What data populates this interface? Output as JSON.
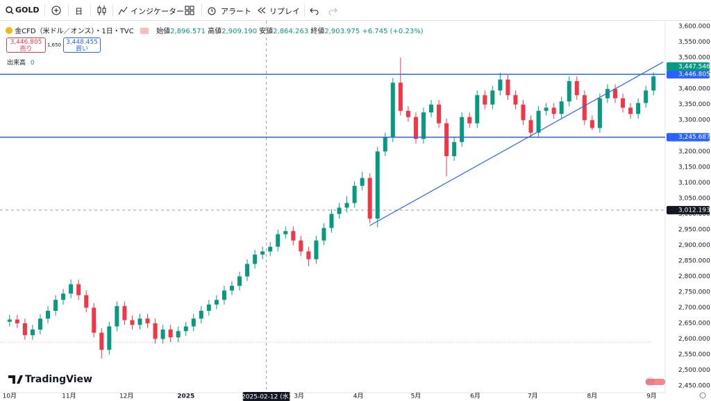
{
  "toolbar": {
    "symbol": "GOLD",
    "interval": "日",
    "indicators": "インジケーター",
    "alert": "アラート",
    "replay": "リプレイ"
  },
  "legend": {
    "title": "金CFD（米ドル／オンス）・1日・TVC",
    "open_label": "始値",
    "open": "2,896.571",
    "high_label": "高値",
    "high": "2,909.190",
    "low_label": "安値",
    "low": "2,864.263",
    "close_label": "終値",
    "close": "2,903.975",
    "change": "+6.745 (+0.23%)",
    "sell_price": "3,446.805",
    "sell_label": "売り",
    "spread": "1,650",
    "buy_price": "3,448.455",
    "buy_label": "買い",
    "volume_label": "出来高",
    "volume": "0"
  },
  "logo": "TradingView",
  "chart_data": {
    "type": "candlestick",
    "up_color": "#089981",
    "down_color": "#f23645",
    "grid": false,
    "x": [
      0,
      4,
      8,
      12,
      16,
      20,
      24,
      28,
      32,
      36,
      40,
      44,
      48,
      52,
      56,
      60,
      64,
      68,
      72,
      76,
      80,
      84,
      88,
      92,
      96,
      100,
      104,
      108,
      112,
      116,
      120,
      124,
      128,
      132,
      136,
      140,
      144,
      148,
      152,
      156,
      160,
      164,
      168,
      172,
      176,
      180,
      184,
      188,
      192,
      196,
      200,
      204,
      208,
      212,
      216,
      220,
      224,
      228,
      232,
      236,
      240,
      244,
      248,
      252,
      256,
      260,
      264,
      268,
      272,
      276,
      280,
      284,
      288,
      292,
      296,
      300,
      304,
      308,
      312,
      316,
      320,
      324,
      328,
      332,
      336
    ],
    "open": [
      2655,
      2662,
      2650,
      2612,
      2630,
      2665,
      2690,
      2725,
      2745,
      2775,
      2740,
      2700,
      2620,
      2565,
      2640,
      2705,
      2660,
      2645,
      2665,
      2650,
      2600,
      2630,
      2605,
      2625,
      2640,
      2665,
      2690,
      2710,
      2725,
      2755,
      2770,
      2800,
      2840,
      2870,
      2880,
      2895,
      2935,
      2945,
      2915,
      2880,
      2855,
      2915,
      2955,
      3000,
      3020,
      3035,
      3090,
      3115,
      2985,
      3200,
      3245,
      3420,
      3330,
      3310,
      3240,
      3325,
      3350,
      3290,
      3185,
      3230,
      3310,
      3290,
      3380,
      3350,
      3395,
      3430,
      3380,
      3350,
      3300,
      3260,
      3330,
      3340,
      3320,
      3360,
      3425,
      3380,
      3300,
      3275,
      3370,
      3400,
      3370,
      3340,
      3320,
      3355,
      3395
    ],
    "high": [
      2677,
      2677,
      2665,
      2645,
      2680,
      2705,
      2740,
      2760,
      2790,
      2790,
      2755,
      2715,
      2635,
      2655,
      2720,
      2720,
      2675,
      2680,
      2680,
      2665,
      2645,
      2645,
      2640,
      2655,
      2680,
      2705,
      2725,
      2740,
      2770,
      2785,
      2815,
      2855,
      2885,
      2895,
      2910,
      2950,
      2960,
      2960,
      2930,
      2895,
      2930,
      2970,
      3015,
      3035,
      3057,
      3105,
      3135,
      3130,
      3215,
      3260,
      3435,
      3500,
      3345,
      3325,
      3340,
      3365,
      3365,
      3305,
      3245,
      3325,
      3325,
      3395,
      3395,
      3410,
      3452,
      3445,
      3395,
      3365,
      3315,
      3345,
      3355,
      3355,
      3375,
      3440,
      3440,
      3395,
      3315,
      3385,
      3415,
      3415,
      3385,
      3355,
      3370,
      3410,
      3453
    ],
    "low": [
      2640,
      2635,
      2597,
      2597,
      2615,
      2650,
      2675,
      2710,
      2730,
      2725,
      2685,
      2605,
      2537,
      2550,
      2625,
      2645,
      2630,
      2630,
      2635,
      2585,
      2585,
      2590,
      2590,
      2610,
      2625,
      2650,
      2675,
      2695,
      2710,
      2740,
      2755,
      2785,
      2825,
      2855,
      2865,
      2880,
      2920,
      2900,
      2865,
      2832,
      2840,
      2900,
      2940,
      2985,
      3005,
      3020,
      3075,
      2970,
      2957,
      3185,
      3230,
      3315,
      3295,
      3225,
      3225,
      3310,
      3275,
      3120,
      3170,
      3215,
      3275,
      3275,
      3335,
      3335,
      3380,
      3365,
      3335,
      3285,
      3245,
      3245,
      3315,
      3305,
      3305,
      3345,
      3365,
      3285,
      3268,
      3260,
      3355,
      3355,
      3325,
      3305,
      3305,
      3340,
      3380
    ],
    "close": [
      2662,
      2650,
      2612,
      2630,
      2665,
      2690,
      2725,
      2745,
      2775,
      2740,
      2700,
      2620,
      2565,
      2640,
      2705,
      2660,
      2645,
      2665,
      2650,
      2600,
      2630,
      2605,
      2625,
      2640,
      2665,
      2690,
      2710,
      2725,
      2755,
      2770,
      2800,
      2840,
      2870,
      2880,
      2895,
      2935,
      2945,
      2915,
      2880,
      2855,
      2915,
      2955,
      3000,
      3020,
      3035,
      3090,
      3115,
      2985,
      3200,
      3245,
      3420,
      3330,
      3310,
      3240,
      3325,
      3350,
      3290,
      3185,
      3230,
      3310,
      3290,
      3380,
      3350,
      3395,
      3430,
      3380,
      3350,
      3300,
      3260,
      3330,
      3340,
      3320,
      3360,
      3425,
      3380,
      3300,
      3275,
      3370,
      3400,
      3370,
      3340,
      3320,
      3355,
      3395,
      3440
    ],
    "xlim": [
      -5,
      341
    ],
    "ylim": [
      2428,
      3618
    ],
    "xticks": [
      {
        "value": 0,
        "label": "10月"
      },
      {
        "value": 31,
        "label": "11月"
      },
      {
        "value": 61,
        "label": "12月"
      },
      {
        "value": 92,
        "label": "2025"
      },
      {
        "value": 151,
        "label": "3月"
      },
      {
        "value": 182,
        "label": "4月"
      },
      {
        "value": 212,
        "label": "5月"
      },
      {
        "value": 243,
        "label": "6月"
      },
      {
        "value": 273,
        "label": "7月"
      },
      {
        "value": 304,
        "label": "8月"
      },
      {
        "value": 335,
        "label": "9月"
      }
    ],
    "yticks": [
      {
        "value": 2450,
        "label": "2,450.000"
      },
      {
        "value": 2500,
        "label": "2,500.000"
      },
      {
        "value": 2550,
        "label": "2,550.000"
      },
      {
        "value": 2600,
        "label": "2,600.000"
      },
      {
        "value": 2650,
        "label": "2,650.000"
      },
      {
        "value": 2700,
        "label": "2,700.000"
      },
      {
        "value": 2750,
        "label": "2,750.000"
      },
      {
        "value": 2800,
        "label": "2,800.000"
      },
      {
        "value": 2850,
        "label": "2,850.000"
      },
      {
        "value": 2900,
        "label": "2,900.000"
      },
      {
        "value": 2950,
        "label": "2,950.000"
      },
      {
        "value": 3000,
        "label": "3,000.000"
      },
      {
        "value": 3050,
        "label": "3,050.000"
      },
      {
        "value": 3100,
        "label": "3,100.000"
      },
      {
        "value": 3150,
        "label": "3,150.000"
      },
      {
        "value": 3200,
        "label": "3,200.000"
      },
      {
        "value": 3250,
        "label": "3,250.000"
      },
      {
        "value": 3300,
        "label": "3,300.000"
      },
      {
        "value": 3350,
        "label": "3,350.000"
      },
      {
        "value": 3400,
        "label": "3,400.000"
      },
      {
        "value": 3450,
        "label": "3,450.000"
      },
      {
        "value": 3500,
        "label": "3,500.000"
      },
      {
        "value": 3550,
        "label": "3,550.000"
      },
      {
        "value": 3600,
        "label": "3,600.000"
      }
    ],
    "hlines": [
      {
        "value": 3446.805,
        "label": "3,446.805",
        "color": "#2962ff"
      },
      {
        "value": 3245.687,
        "label": "3,245.687",
        "color": "#2962ff"
      }
    ],
    "last_price": {
      "value": 3447.546,
      "label": "3,447.546",
      "color": "#089981"
    },
    "dotted_line": 2590,
    "trendline": {
      "x": [
        188,
        341
      ],
      "y": [
        2963,
        3486
      ],
      "color": "#2962ff"
    },
    "crosshair": {
      "x": {
        "value": 134,
        "label": "2025-02-12 (水)"
      },
      "y": {
        "value": 3012.193,
        "label": "3,012.193"
      }
    }
  }
}
